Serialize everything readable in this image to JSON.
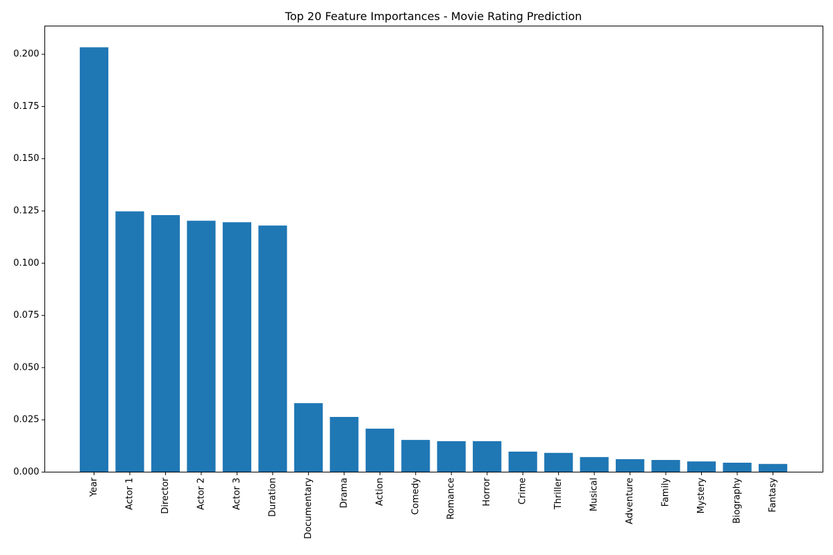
{
  "chart_data": {
    "type": "bar",
    "title": "Top 20 Feature Importances - Movie Rating Prediction",
    "xlabel": "",
    "ylabel": "",
    "categories": [
      "Year",
      "Actor 1",
      "Director",
      "Actor 2",
      "Actor 3",
      "Duration",
      "Documentary",
      "Drama",
      "Action",
      "Comedy",
      "Romance",
      "Horror",
      "Crime",
      "Thriller",
      "Musical",
      "Adventure",
      "Family",
      "Mystery",
      "Biography",
      "Fantasy"
    ],
    "values": [
      0.2033,
      0.1248,
      0.123,
      0.1203,
      0.1196,
      0.118,
      0.033,
      0.0264,
      0.0208,
      0.0154,
      0.0148,
      0.0148,
      0.0098,
      0.0092,
      0.0072,
      0.0062,
      0.0058,
      0.0051,
      0.0045,
      0.0039
    ],
    "ylim": [
      0,
      0.2135
    ],
    "y_ticks": [
      "0.000",
      "0.025",
      "0.050",
      "0.075",
      "0.100",
      "0.125",
      "0.150",
      "0.175",
      "0.200"
    ],
    "y_tick_values": [
      0,
      0.025,
      0.05,
      0.075,
      0.1,
      0.125,
      0.15,
      0.175,
      0.2
    ],
    "bar_color": "#1f77b4",
    "grid": false,
    "legend": "none"
  }
}
